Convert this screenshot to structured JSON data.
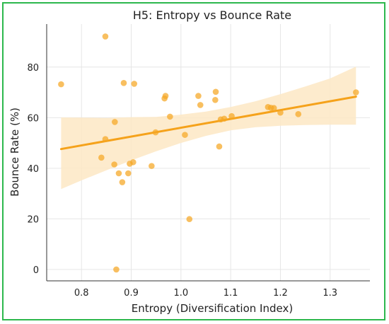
{
  "chart_data": {
    "type": "scatter",
    "title": "H5: Entropy vs Bounce Rate",
    "xlabel": "Entropy (Diversification Index)",
    "ylabel": "Bounce Rate (%)",
    "xlim": [
      0.73,
      1.38
    ],
    "ylim": [
      -4.5,
      97
    ],
    "xticks": [
      "0.8",
      "0.9",
      "1.0",
      "1.1",
      "1.2",
      "1.3"
    ],
    "yticks": [
      "0",
      "20",
      "40",
      "60",
      "80"
    ],
    "grid": true,
    "colors": {
      "points": "#f5a623",
      "line": "#f5a21b",
      "band": "#fde8c4",
      "frame": "#2db84d"
    },
    "points": [
      {
        "x": 0.759,
        "y": 73.2
      },
      {
        "x": 0.84,
        "y": 44.2
      },
      {
        "x": 0.848,
        "y": 92.1
      },
      {
        "x": 0.848,
        "y": 51.5
      },
      {
        "x": 0.866,
        "y": 41.5
      },
      {
        "x": 0.867,
        "y": 58.3
      },
      {
        "x": 0.87,
        "y": 0.0
      },
      {
        "x": 0.875,
        "y": 38.0
      },
      {
        "x": 0.882,
        "y": 34.5
      },
      {
        "x": 0.885,
        "y": 73.7
      },
      {
        "x": 0.894,
        "y": 38.0
      },
      {
        "x": 0.897,
        "y": 41.8
      },
      {
        "x": 0.904,
        "y": 42.4
      },
      {
        "x": 0.906,
        "y": 73.4
      },
      {
        "x": 0.941,
        "y": 40.9
      },
      {
        "x": 0.949,
        "y": 54.2
      },
      {
        "x": 0.967,
        "y": 67.6
      },
      {
        "x": 0.969,
        "y": 68.6
      },
      {
        "x": 0.978,
        "y": 60.4
      },
      {
        "x": 1.008,
        "y": 53.2
      },
      {
        "x": 1.017,
        "y": 19.9
      },
      {
        "x": 1.035,
        "y": 68.6
      },
      {
        "x": 1.039,
        "y": 65.0
      },
      {
        "x": 1.069,
        "y": 67.0
      },
      {
        "x": 1.07,
        "y": 70.2
      },
      {
        "x": 1.077,
        "y": 48.6
      },
      {
        "x": 1.08,
        "y": 59.3
      },
      {
        "x": 1.087,
        "y": 59.6
      },
      {
        "x": 1.102,
        "y": 60.6
      },
      {
        "x": 1.175,
        "y": 64.2
      },
      {
        "x": 1.181,
        "y": 63.9
      },
      {
        "x": 1.187,
        "y": 63.8
      },
      {
        "x": 1.2,
        "y": 62.0
      },
      {
        "x": 1.236,
        "y": 61.4
      },
      {
        "x": 1.352,
        "y": 70.0
      }
    ],
    "regression": {
      "x": [
        0.759,
        1.352
      ],
      "y": [
        47.6,
        68.3
      ]
    },
    "confidence_band": {
      "x": [
        0.759,
        0.8,
        0.85,
        0.9,
        0.95,
        1.0,
        1.05,
        1.1,
        1.15,
        1.2,
        1.25,
        1.3,
        1.352
      ],
      "upper": [
        60.1,
        60.0,
        59.9,
        60.2,
        60.3,
        61.2,
        62.4,
        64.2,
        66.5,
        69.3,
        72.3,
        75.5,
        80.2
      ],
      "lower": [
        31.8,
        35.2,
        39.2,
        43.1,
        46.7,
        50.0,
        52.8,
        55.0,
        56.2,
        56.8,
        57.1,
        57.2,
        57.2
      ]
    }
  }
}
